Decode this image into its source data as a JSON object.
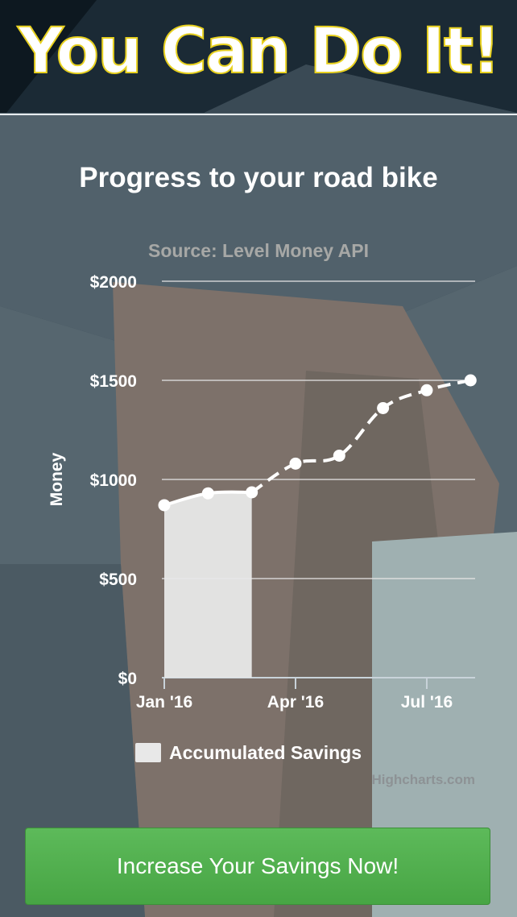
{
  "header": {
    "title": "You Can Do It!"
  },
  "chart": {
    "title": "Progress to your road bike",
    "subtitle": "Source: Level Money API",
    "credits": "Highcharts.com",
    "legend_label": "Accumulated Savings"
  },
  "cta": {
    "label": "Increase Your Savings Now!"
  },
  "colors": {
    "accent_title_stroke": "#e8d11f",
    "button": "#4cae4a",
    "area_fill": "#e8e8e8",
    "line": "#ffffff"
  },
  "chart_data": {
    "type": "line",
    "title": "Progress to your road bike",
    "subtitle": "Source: Level Money API",
    "xlabel": "",
    "ylabel": "Money",
    "ylim": [
      0,
      2000
    ],
    "y_ticks": [
      "$0",
      "$500",
      "$1000",
      "$1500",
      "$2000"
    ],
    "y_tick_values": [
      0,
      500,
      1000,
      1500,
      2000
    ],
    "x_ticks": [
      "Jan '16",
      "Apr '16",
      "Jul '16"
    ],
    "grid": true,
    "legend_position": "bottom",
    "series": [
      {
        "name": "Accumulated Savings",
        "style": "area, solid",
        "x": [
          "2016-01",
          "2016-02",
          "2016-03"
        ],
        "values": [
          870,
          930,
          935
        ]
      },
      {
        "style": "dashed",
        "x": [
          "2016-03",
          "2016-04",
          "2016-05",
          "2016-06",
          "2016-07",
          "2016-08"
        ],
        "values": [
          935,
          1080,
          1120,
          1360,
          1450,
          1500
        ]
      }
    ]
  }
}
